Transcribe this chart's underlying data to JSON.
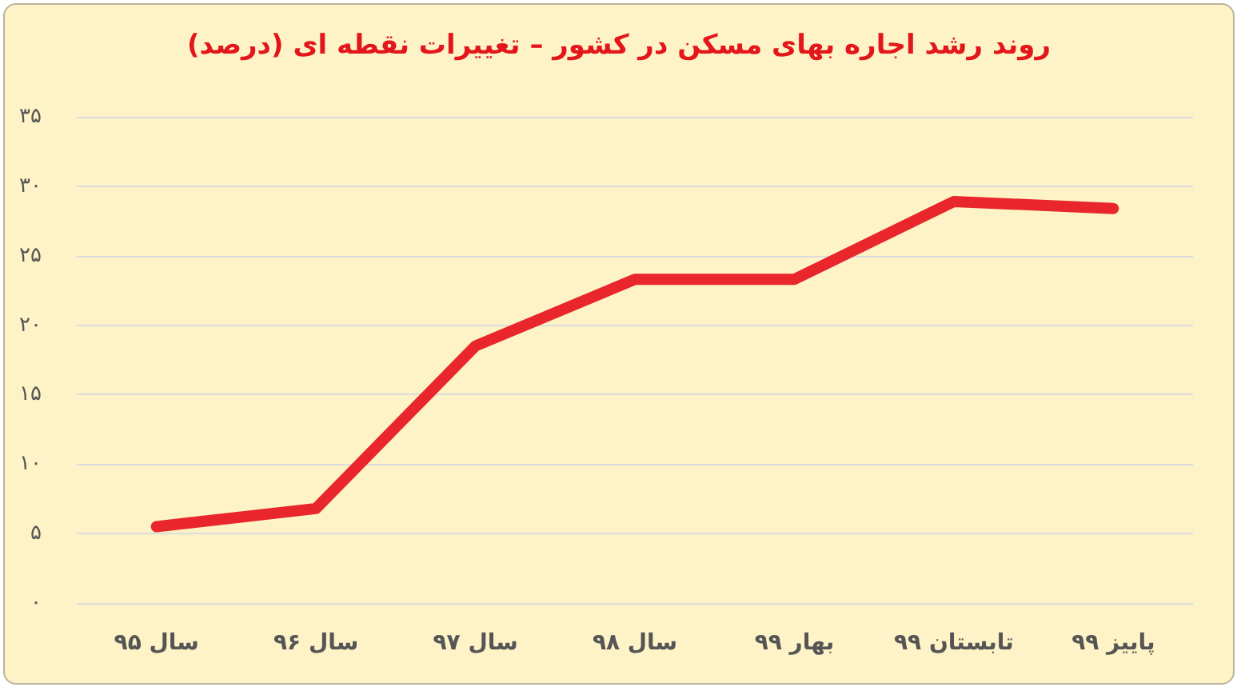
{
  "chart_data": {
    "type": "line",
    "title": "روند رشد اجاره بهای مسکن در کشور – تغییرات نقطه ای (درصد)",
    "categories": [
      "سال ۹۵",
      "سال ۹۶",
      "سال ۹۷",
      "سال ۹۸",
      "بهار ۹۹",
      "تابستان ۹۹",
      "پاییز ۹۹"
    ],
    "series": [
      {
        "color": "#e8262b",
        "values": [
          5.5,
          6.8,
          18.5,
          23.3,
          23.3,
          28.9,
          28.4
        ]
      }
    ],
    "ylim": [
      0,
      35
    ],
    "yticks": [
      {
        "value": 0,
        "label": "۰"
      },
      {
        "value": 5,
        "label": "۵"
      },
      {
        "value": 10,
        "label": "۱۰"
      },
      {
        "value": 15,
        "label": "۱۵"
      },
      {
        "value": 20,
        "label": "۲۰"
      },
      {
        "value": 25,
        "label": "۲۵"
      },
      {
        "value": 30,
        "label": "۳۰"
      },
      {
        "value": 35,
        "label": "۳۵"
      }
    ],
    "grid": "y",
    "marker": "none",
    "line_style": "solid"
  }
}
